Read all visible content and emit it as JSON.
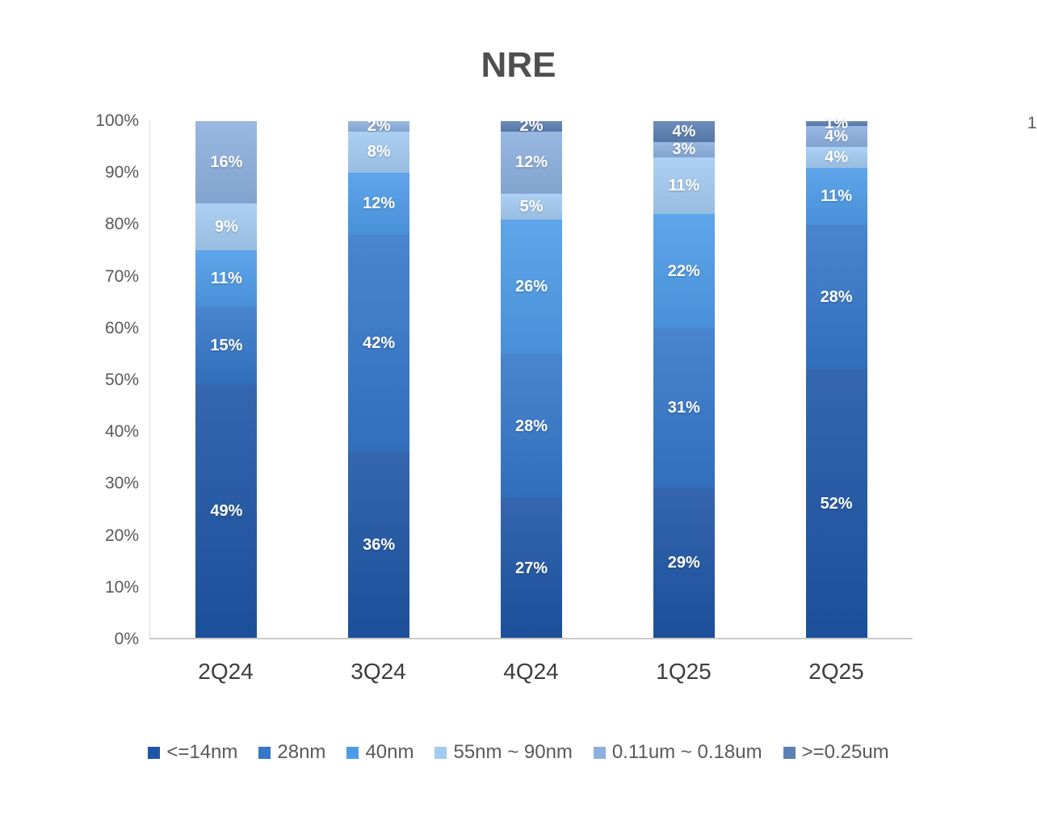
{
  "title": "NRE",
  "stray_text": "1",
  "chart_data": {
    "type": "bar",
    "subtype": "stacked-percent",
    "title": "NRE",
    "categories": [
      "2Q24",
      "3Q24",
      "4Q24",
      "1Q25",
      "2Q25"
    ],
    "series": [
      {
        "name": "<=14nm",
        "color": "#1E55A6",
        "values": [
          49,
          36,
          27,
          29,
          52
        ]
      },
      {
        "name": "28nm",
        "color": "#3577C9",
        "values": [
          15,
          42,
          28,
          31,
          28
        ]
      },
      {
        "name": "40nm",
        "color": "#4D9BE8",
        "values": [
          11,
          12,
          26,
          22,
          11
        ]
      },
      {
        "name": "55nm ~ 90nm",
        "color": "#A3CBF2",
        "values": [
          9,
          8,
          5,
          11,
          4
        ]
      },
      {
        "name": "0.11um ~ 0.18um",
        "color": "#8DB0DF",
        "values": [
          16,
          2,
          12,
          3,
          4
        ]
      },
      {
        "name": ">=0.25um",
        "color": "#5C80B3",
        "values": [
          0,
          0,
          2,
          4,
          1
        ]
      }
    ],
    "y_ticks": [
      "100%",
      "90%",
      "80%",
      "70%",
      "60%",
      "50%",
      "40%",
      "30%",
      "20%",
      "10%",
      "0%"
    ],
    "ylim": [
      0,
      100
    ],
    "value_suffix": "%",
    "legend_position": "bottom",
    "grid": false
  }
}
